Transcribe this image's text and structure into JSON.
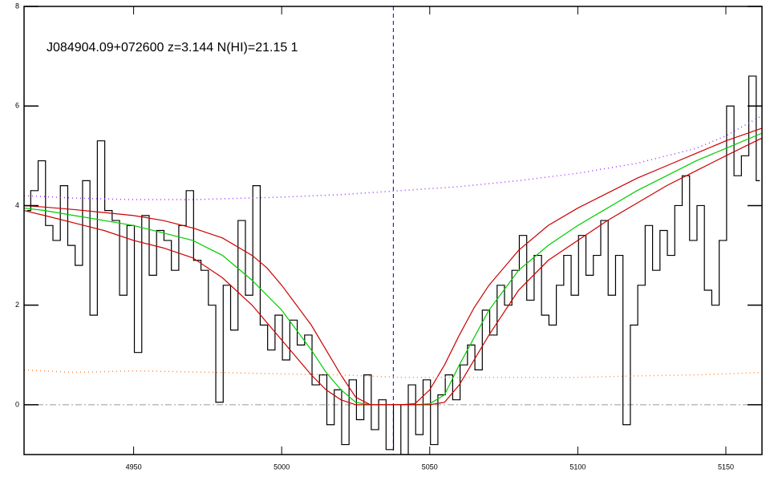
{
  "chart_data": {
    "type": "line",
    "title": "J084904.09+072600 z=3.144 N(HI)=21.15 1",
    "xlim": [
      4913,
      5162.2
    ],
    "ylim": [
      -1,
      8
    ],
    "xticks": [
      4950,
      5000,
      5050,
      5100,
      5150
    ],
    "yticks": [
      0,
      2,
      4,
      6,
      8
    ],
    "zero_line": 0,
    "line_center": 5037.7,
    "series": [
      {
        "color": "#000000",
        "drawstyle": "steps",
        "style": "solid",
        "x": [
          4914,
          4916.5,
          4919,
          4921.5,
          4924,
          4926.5,
          4929,
          4931.5,
          4934,
          4936.5,
          4939,
          4941.5,
          4944,
          4946.5,
          4949,
          4951.5,
          4954,
          4956.5,
          4959,
          4961.5,
          4964,
          4966.5,
          4969,
          4971.5,
          4974,
          4976.5,
          4979,
          4981.5,
          4984,
          4986.5,
          4989,
          4991.5,
          4994,
          4996.5,
          4999,
          5001.5,
          5004,
          5006.5,
          5009,
          5011.5,
          5014,
          5016.5,
          5019,
          5021.5,
          5024,
          5026.5,
          5029,
          5031.5,
          5034,
          5036.5,
          5039,
          5041.5,
          5044,
          5046.5,
          5049,
          5051.5,
          5054,
          5056.5,
          5059,
          5061.5,
          5064,
          5066.5,
          5069,
          5071.5,
          5074,
          5076.5,
          5079,
          5081.5,
          5084,
          5086.5,
          5089,
          5091.5,
          5094,
          5096.5,
          5099,
          5101.5,
          5104,
          5106.5,
          5109,
          5111.5,
          5114,
          5116.5,
          5119,
          5121.5,
          5124,
          5126.5,
          5129,
          5131.5,
          5134,
          5136.5,
          5139,
          5141.5,
          5144,
          5146.5,
          5149,
          5151.5,
          5154,
          5156.5,
          5159,
          5161.5
        ],
        "values": [
          3.9,
          4.3,
          4.9,
          3.6,
          3.3,
          4.4,
          3.2,
          2.8,
          4.5,
          1.8,
          5.3,
          3.9,
          3.7,
          2.2,
          3.6,
          1.05,
          3.8,
          2.6,
          3.5,
          3.3,
          2.7,
          3.6,
          4.3,
          2.9,
          2.7,
          2.0,
          0.05,
          2.4,
          1.5,
          3.7,
          2.2,
          4.4,
          1.6,
          1.1,
          1.8,
          0.9,
          1.7,
          1.2,
          1.4,
          0.4,
          0.6,
          -0.4,
          0.3,
          -0.8,
          0.5,
          -0.3,
          0.6,
          -0.5,
          0.1,
          -0.9,
          0.0,
          -1.0,
          0.4,
          -0.6,
          0.5,
          -0.8,
          0.2,
          0.6,
          0.1,
          0.8,
          1.2,
          0.7,
          1.9,
          1.4,
          2.4,
          2.0,
          2.7,
          3.4,
          2.1,
          3.0,
          1.8,
          1.6,
          2.4,
          3.0,
          2.2,
          3.4,
          2.6,
          3.0,
          3.7,
          2.2,
          3.0,
          -0.4,
          1.6,
          2.4,
          3.6,
          2.7,
          3.5,
          3.0,
          4.0,
          4.6,
          3.3,
          4.0,
          2.3,
          2.0,
          3.3,
          6.0,
          4.6,
          5.0,
          6.6,
          4.5
        ]
      },
      {
        "color": "#00cc00",
        "drawstyle": "line",
        "style": "solid",
        "x": [
          4913,
          4920,
          4930,
          4940,
          4950,
          4960,
          4970,
          4980,
          4990,
          4995,
          5000,
          5005,
          5010,
          5015,
          5020,
          5025,
          5030,
          5040,
          5045,
          5050,
          5055,
          5060,
          5065,
          5070,
          5080,
          5090,
          5100,
          5110,
          5120,
          5130,
          5140,
          5150,
          5162
        ],
        "values": [
          3.95,
          3.9,
          3.8,
          3.7,
          3.6,
          3.45,
          3.3,
          3.0,
          2.5,
          2.2,
          1.9,
          1.5,
          1.1,
          0.65,
          0.3,
          0.05,
          0,
          0,
          0,
          0.02,
          0.2,
          0.8,
          1.35,
          1.9,
          2.7,
          3.2,
          3.6,
          3.95,
          4.3,
          4.6,
          4.9,
          5.15,
          5.45
        ]
      },
      {
        "color": "#cc0000",
        "drawstyle": "line",
        "style": "solid",
        "x": [
          4913,
          4920,
          4930,
          4940,
          4950,
          4960,
          4970,
          4980,
          4990,
          4995,
          5000,
          5005,
          5010,
          5015,
          5020,
          5025,
          5030,
          5040,
          5045,
          5050,
          5055,
          5060,
          5065,
          5070,
          5080,
          5090,
          5100,
          5110,
          5120,
          5130,
          5140,
          5150,
          5162
        ],
        "values": [
          4.0,
          3.97,
          3.92,
          3.86,
          3.8,
          3.7,
          3.55,
          3.35,
          3.0,
          2.75,
          2.4,
          2.0,
          1.6,
          1.1,
          0.6,
          0.15,
          0,
          0,
          0.02,
          0.3,
          0.8,
          1.4,
          1.95,
          2.4,
          3.1,
          3.6,
          3.95,
          4.25,
          4.55,
          4.8,
          5.05,
          5.3,
          5.55
        ]
      },
      {
        "color": "#cc0000",
        "drawstyle": "line",
        "style": "solid",
        "x": [
          4913,
          4920,
          4930,
          4940,
          4950,
          4960,
          4970,
          4980,
          4990,
          4995,
          5000,
          5005,
          5010,
          5015,
          5020,
          5025,
          5030,
          5040,
          5045,
          5050,
          5055,
          5060,
          5065,
          5070,
          5080,
          5090,
          5100,
          5110,
          5120,
          5130,
          5140,
          5150,
          5162
        ],
        "values": [
          3.9,
          3.8,
          3.65,
          3.5,
          3.3,
          3.15,
          2.95,
          2.55,
          2.0,
          1.65,
          1.3,
          0.95,
          0.6,
          0.3,
          0.1,
          0,
          0,
          0,
          0,
          0,
          0.05,
          0.4,
          0.9,
          1.4,
          2.3,
          2.9,
          3.3,
          3.7,
          4.05,
          4.4,
          4.7,
          5.0,
          5.35
        ]
      },
      {
        "color": "#9933ff",
        "drawstyle": "line",
        "style": "dotted",
        "x": [
          4913,
          4930,
          4950,
          4970,
          5000,
          5020,
          5040,
          5060,
          5080,
          5100,
          5120,
          5140,
          5150,
          5162
        ],
        "values": [
          4.2,
          4.15,
          4.12,
          4.12,
          4.17,
          4.22,
          4.3,
          4.38,
          4.5,
          4.65,
          4.85,
          5.15,
          5.4,
          5.8
        ]
      },
      {
        "color": "#ff8833",
        "drawstyle": "line",
        "style": "dotted",
        "x": [
          4913,
          4930,
          4950,
          4970,
          5000,
          5020,
          5040,
          5060,
          5080,
          5100,
          5120,
          5140,
          5150,
          5162
        ],
        "values": [
          0.7,
          0.65,
          0.68,
          0.66,
          0.62,
          0.6,
          0.55,
          0.55,
          0.55,
          0.55,
          0.58,
          0.6,
          0.62,
          0.65
        ]
      }
    ]
  }
}
